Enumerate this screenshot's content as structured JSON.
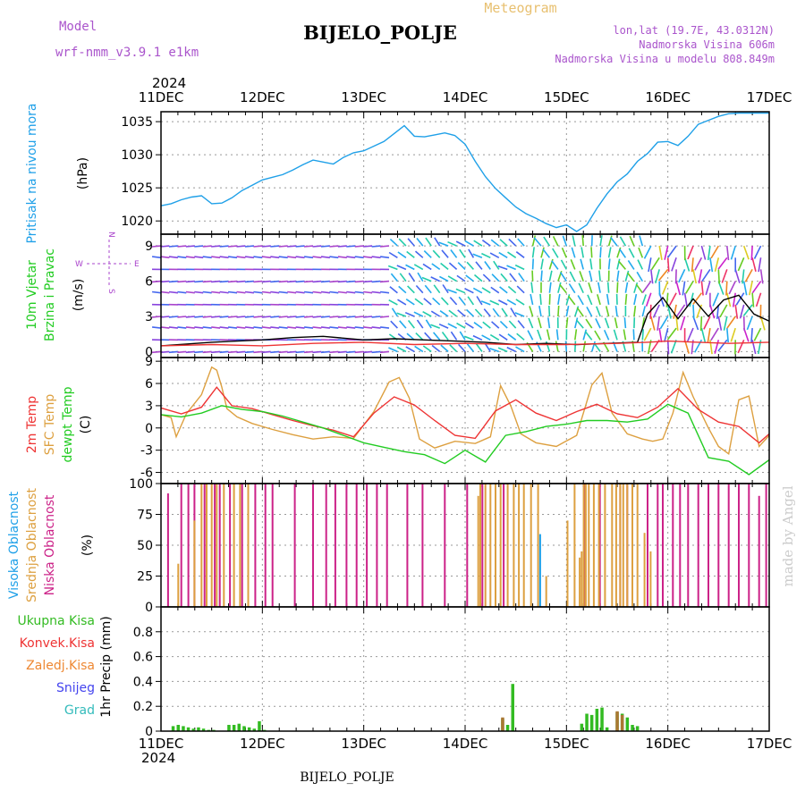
{
  "header": {
    "meteogram_label": "Meteogram",
    "station_title": "BIJELO_POLJE",
    "model_label": "Model",
    "model_name": "wrf-nmm_v3.9.1 e1km",
    "lonlat": "lon,lat (19.7E, 43.0312N)",
    "elevation": "Nadmorska Visina 606m",
    "model_elevation": "Nadmorska Visina u modelu 808.849m",
    "year_top": "2024",
    "year_bottom": "2024",
    "footer_station": "BIJELO_POLJE",
    "credit": "made by Angel"
  },
  "colors": {
    "pressure": "#1fa0e8",
    "wind_label": "#22cc22",
    "wind_label2": "#22cc22",
    "temp2m": "#ee3333",
    "sfc_temp": "#dda040",
    "dewpt": "#22cc22",
    "cloud_high": "#1fa0e8",
    "cloud_mid": "#dda040",
    "cloud_low": "#cc2288",
    "precip_total": "#33bb22",
    "precip_conv": "#ee3333",
    "precip_frz": "#ee8833",
    "precip_snow": "#4444ee",
    "precip_hail": "#33bbbb",
    "compass": "#aa44cc",
    "header_purple": "#aa55cc",
    "header_orange": "#e8c070"
  },
  "chart_data": [
    {
      "type": "line",
      "id": "pressure",
      "ylabel_outer": "Pritisak na nivou mora",
      "ylabel_unit": "(hPa)",
      "ylim": [
        1018,
        1036.5
      ],
      "yticks": [
        "1020",
        "1025",
        "1030",
        "1035"
      ],
      "ytick_values": [
        1020,
        1025,
        1030,
        1035
      ],
      "x_categories": [
        "11DEC",
        "12DEC",
        "13DEC",
        "14DEC",
        "15DEC",
        "16DEC",
        "17DEC"
      ],
      "xlim_days": [
        0,
        6
      ],
      "grid": true,
      "series": [
        {
          "color": "pressure",
          "x": [
            0,
            0.1,
            0.2,
            0.3,
            0.4,
            0.5,
            0.6,
            0.7,
            0.8,
            0.9,
            1.0,
            1.1,
            1.2,
            1.3,
            1.4,
            1.5,
            1.6,
            1.7,
            1.8,
            1.9,
            2.0,
            2.1,
            2.2,
            2.3,
            2.4,
            2.5,
            2.6,
            2.7,
            2.8,
            2.9,
            3.0,
            3.1,
            3.2,
            3.3,
            3.4,
            3.5,
            3.6,
            3.7,
            3.8,
            3.9,
            4.0,
            4.1,
            4.2,
            4.3,
            4.4,
            4.5,
            4.6,
            4.7,
            4.8,
            4.9,
            5.0,
            5.1,
            5.2,
            5.3,
            5.4,
            5.5,
            5.6,
            5.7,
            5.8,
            5.9,
            6.0
          ],
          "y": [
            1022.3,
            1022.6,
            1023.2,
            1023.6,
            1023.8,
            1022.6,
            1022.7,
            1023.5,
            1024.6,
            1025.4,
            1026.2,
            1026.6,
            1027.0,
            1027.7,
            1028.5,
            1029.2,
            1028.9,
            1028.6,
            1029.6,
            1030.3,
            1030.6,
            1031.3,
            1032.0,
            1033.2,
            1034.4,
            1032.8,
            1032.7,
            1033.0,
            1033.3,
            1032.9,
            1031.6,
            1029.0,
            1026.7,
            1024.9,
            1023.5,
            1022.1,
            1021.1,
            1020.4,
            1019.6,
            1019.0,
            1019.4,
            1018.4,
            1019.4,
            1021.9,
            1024.1,
            1025.9,
            1027.1,
            1029.0,
            1030.2,
            1031.9,
            1032.0,
            1031.4,
            1032.8,
            1034.6,
            1035.2,
            1035.8,
            1036.2,
            1036.3,
            1036.3,
            1036.3,
            1036.3
          ]
        }
      ]
    },
    {
      "type": "line",
      "id": "wind",
      "ylabel_outer": "10m Vjetar",
      "ylabel_outer2": "Brzina i Pravac",
      "ylabel_unit": "(m/s)",
      "compass": {
        "w": "W",
        "e": "E",
        "n": "N",
        "s": "S"
      },
      "ylim": [
        -0.5,
        10
      ],
      "yticks": [
        "0",
        "3",
        "6",
        "9"
      ],
      "ytick_values": [
        0,
        3,
        6,
        9
      ],
      "series": [
        {
          "color": "#000000",
          "x": [
            0,
            0.5,
            1.0,
            1.3,
            1.6,
            2.0,
            2.3,
            2.6,
            2.9,
            3.2,
            3.5,
            3.8,
            4.1,
            4.4,
            4.7,
            4.8,
            4.95,
            5.1,
            5.25,
            5.4,
            5.55,
            5.7,
            5.85,
            6.0
          ],
          "y": [
            0.5,
            0.8,
            1.0,
            1.2,
            1.3,
            1.0,
            1.1,
            1.0,
            0.9,
            0.8,
            0.6,
            0.7,
            0.6,
            0.7,
            0.8,
            3.2,
            4.6,
            2.8,
            4.5,
            3.0,
            4.4,
            4.8,
            3.2,
            2.6
          ]
        },
        {
          "color": "#ee3333",
          "x": [
            0,
            0.5,
            1.0,
            1.5,
            2.0,
            2.5,
            3.0,
            3.5,
            4.0,
            4.5,
            4.8,
            5.0,
            5.3,
            5.6,
            6.0
          ],
          "y": [
            0.5,
            0.6,
            0.5,
            0.7,
            0.8,
            0.6,
            0.7,
            0.6,
            0.6,
            0.7,
            0.8,
            0.9,
            0.8,
            0.7,
            0.8
          ]
        }
      ]
    },
    {
      "type": "line",
      "id": "temperature",
      "ylabel_outer": "2m Temp",
      "ylabel_outer2": "SFC Temp",
      "ylabel_outer3": "dewpt Temp",
      "ylabel_unit": "(C)",
      "ylim": [
        -7.5,
        9.5
      ],
      "yticks": [
        "-6",
        "-3",
        "0",
        "3",
        "6",
        "9"
      ],
      "ytick_values": [
        -6,
        -3,
        0,
        3,
        6,
        9
      ],
      "series": [
        {
          "color": "sfc_temp",
          "x": [
            0,
            0.1,
            0.15,
            0.25,
            0.4,
            0.5,
            0.55,
            0.6,
            0.65,
            0.75,
            0.9,
            1.1,
            1.3,
            1.5,
            1.7,
            1.9,
            2.1,
            2.25,
            2.35,
            2.45,
            2.55,
            2.7,
            2.9,
            3.1,
            3.25,
            3.35,
            3.45,
            3.55,
            3.7,
            3.9,
            4.1,
            4.25,
            4.35,
            4.45,
            4.6,
            4.75,
            4.85,
            4.95,
            5.05,
            5.15,
            5.25,
            5.4,
            5.5,
            5.6,
            5.7,
            5.8,
            5.9,
            6.0
          ],
          "y": [
            1.8,
            1.4,
            -1.2,
            1.9,
            4.5,
            8.2,
            7.8,
            5.5,
            2.6,
            1.5,
            0.6,
            -0.2,
            -0.9,
            -1.5,
            -1.2,
            -1.4,
            2.2,
            6.2,
            6.8,
            4.0,
            -1.5,
            -2.7,
            -1.8,
            -2.1,
            -1.2,
            5.7,
            3.0,
            -0.8,
            -2.0,
            -2.5,
            -1.0,
            5.8,
            7.4,
            2.0,
            -0.8,
            -1.5,
            -1.8,
            -1.5,
            2.0,
            7.5,
            4.2,
            0.0,
            -2.5,
            -3.5,
            3.8,
            4.3,
            -2.5,
            -1.0
          ]
        },
        {
          "color": "temp2m",
          "x": [
            0,
            0.2,
            0.4,
            0.55,
            0.7,
            0.9,
            1.1,
            1.3,
            1.5,
            1.7,
            1.9,
            2.1,
            2.3,
            2.5,
            2.7,
            2.9,
            3.1,
            3.3,
            3.5,
            3.7,
            3.9,
            4.1,
            4.3,
            4.5,
            4.7,
            4.9,
            5.1,
            5.3,
            5.5,
            5.7,
            5.9,
            6.0
          ],
          "y": [
            2.7,
            1.9,
            2.8,
            5.5,
            3.0,
            2.6,
            1.8,
            1.0,
            0.3,
            -0.3,
            -1.2,
            2.0,
            4.2,
            3.1,
            1.0,
            -1.0,
            -1.4,
            2.3,
            3.8,
            2.0,
            1.0,
            2.2,
            3.2,
            1.9,
            1.4,
            2.8,
            5.3,
            2.5,
            0.8,
            0.2,
            -2.0,
            -0.8
          ]
        },
        {
          "color": "dewpt",
          "x": [
            0,
            0.2,
            0.4,
            0.6,
            0.8,
            1.0,
            1.2,
            1.4,
            1.6,
            1.8,
            2.0,
            2.2,
            2.4,
            2.6,
            2.8,
            3.0,
            3.2,
            3.4,
            3.6,
            3.8,
            4.0,
            4.2,
            4.4,
            4.6,
            4.8,
            5.0,
            5.2,
            5.4,
            5.6,
            5.8,
            6.0
          ],
          "y": [
            1.8,
            1.5,
            2.0,
            3.0,
            2.5,
            2.2,
            1.6,
            0.8,
            0.0,
            -1.0,
            -2.0,
            -2.6,
            -3.2,
            -3.6,
            -4.8,
            -3.0,
            -4.6,
            -1.0,
            -0.5,
            0.2,
            0.5,
            1.0,
            1.0,
            0.8,
            1.2,
            3.2,
            2.0,
            -4.0,
            -4.5,
            -6.3,
            -4.3
          ]
        }
      ]
    },
    {
      "type": "bar",
      "id": "clouds",
      "ylabel_outer": "Visoka Oblacnost",
      "ylabel_outer2": "Srednja Oblacnost",
      "ylabel_outer3": "Niska Oblacnost",
      "ylabel_unit": "(%)",
      "ylim": [
        0,
        100
      ],
      "yticks": [
        "0",
        "25",
        "50",
        "75",
        "100"
      ],
      "ytick_values": [
        0,
        25,
        50,
        75,
        100
      ],
      "series": [
        {
          "name": "",
          "color": "cloud_low",
          "x": [
            0.07,
            0.2,
            0.27,
            0.33,
            0.43,
            0.53,
            0.58,
            0.68,
            0.8,
            0.93,
            1.03,
            1.1,
            1.32,
            1.5,
            1.63,
            1.72,
            1.83,
            1.93,
            2.03,
            2.13,
            2.23,
            2.43,
            2.58,
            2.8,
            3.02,
            3.17,
            3.38,
            4.18,
            4.33,
            4.53,
            4.6,
            4.8,
            4.9,
            4.95,
            5.05,
            5.12,
            5.2,
            5.3,
            5.4,
            5.5,
            5.6,
            5.7,
            5.8,
            5.9,
            5.97
          ],
          "y": [
            92,
            100,
            100,
            100,
            100,
            100,
            100,
            100,
            100,
            100,
            100,
            100,
            100,
            100,
            100,
            100,
            100,
            100,
            100,
            100,
            100,
            100,
            100,
            100,
            100,
            100,
            100,
            100,
            100,
            100,
            100,
            100,
            100,
            100,
            100,
            100,
            100,
            100,
            100,
            100,
            100,
            100,
            100,
            90,
            100
          ]
        },
        {
          "name": "",
          "color": "cloud_mid",
          "x": [
            0.17,
            0.33,
            0.4,
            0.45,
            0.5,
            0.55,
            0.62,
            0.72,
            0.78,
            0.86,
            3.13,
            3.15,
            3.2,
            3.25,
            3.3,
            3.35,
            3.42,
            3.48,
            3.53,
            3.58,
            3.65,
            3.72,
            3.8,
            4.01,
            4.08,
            4.13,
            4.15,
            4.17,
            4.19,
            4.22,
            4.27,
            4.32,
            4.38,
            4.45,
            4.49,
            4.53,
            4.56,
            4.6,
            4.65,
            4.7,
            4.77,
            4.83
          ],
          "y": [
            35,
            70,
            100,
            100,
            100,
            100,
            100,
            100,
            100,
            100,
            90,
            100,
            100,
            100,
            100,
            100,
            100,
            100,
            100,
            100,
            100,
            100,
            25,
            70,
            100,
            40,
            45,
            100,
            100,
            100,
            100,
            100,
            100,
            100,
            100,
            100,
            100,
            100,
            100,
            100,
            60,
            45
          ]
        },
        {
          "name": "",
          "color": "cloud_high",
          "x": [
            3.74
          ],
          "y": [
            59
          ]
        }
      ]
    },
    {
      "type": "bar",
      "id": "precip",
      "ylabel_unit": "1hr Precip (mm)",
      "legend_items": [
        "Ukupna Kisa",
        "Konvek.Kisa",
        "Zaledj.Kisa",
        "Snijeg",
        "Grad"
      ],
      "ylim": [
        0,
        1.0
      ],
      "yticks": [
        "0",
        "0.2",
        "0.4",
        "0.6",
        "0.8"
      ],
      "ytick_values": [
        0,
        0.2,
        0.4,
        0.6,
        0.8
      ],
      "x_categories": [
        "11DEC",
        "12DEC",
        "13DEC",
        "14DEC",
        "15DEC",
        "16DEC",
        "17DEC"
      ],
      "series": [
        {
          "name": "Ukupna Kisa",
          "color": "precip_total",
          "x": [
            0.12,
            0.17,
            0.22,
            0.27,
            0.32,
            0.37,
            0.42,
            0.47,
            0.52,
            0.67,
            0.72,
            0.77,
            0.82,
            0.87,
            0.92,
            0.97,
            1.02,
            3.37,
            3.42,
            3.47,
            4.15,
            4.2,
            4.25,
            4.3,
            4.35,
            4.4,
            4.5,
            4.55,
            4.6,
            4.65,
            4.7
          ],
          "y": [
            0.04,
            0.05,
            0.04,
            0.03,
            0.02,
            0.03,
            0.02,
            0.01,
            0.01,
            0.05,
            0.05,
            0.06,
            0.04,
            0.03,
            0.02,
            0.08,
            0.01,
            0.1,
            0.05,
            0.38,
            0.06,
            0.14,
            0.13,
            0.18,
            0.19,
            0.03,
            0.15,
            0.14,
            0.11,
            0.05,
            0.04
          ]
        },
        {
          "name": "Zaledj.Kisa",
          "color": "#aa7733",
          "x": [
            3.37,
            4.5,
            4.55
          ],
          "y": [
            0.11,
            0.16,
            0.13
          ]
        }
      ]
    }
  ]
}
